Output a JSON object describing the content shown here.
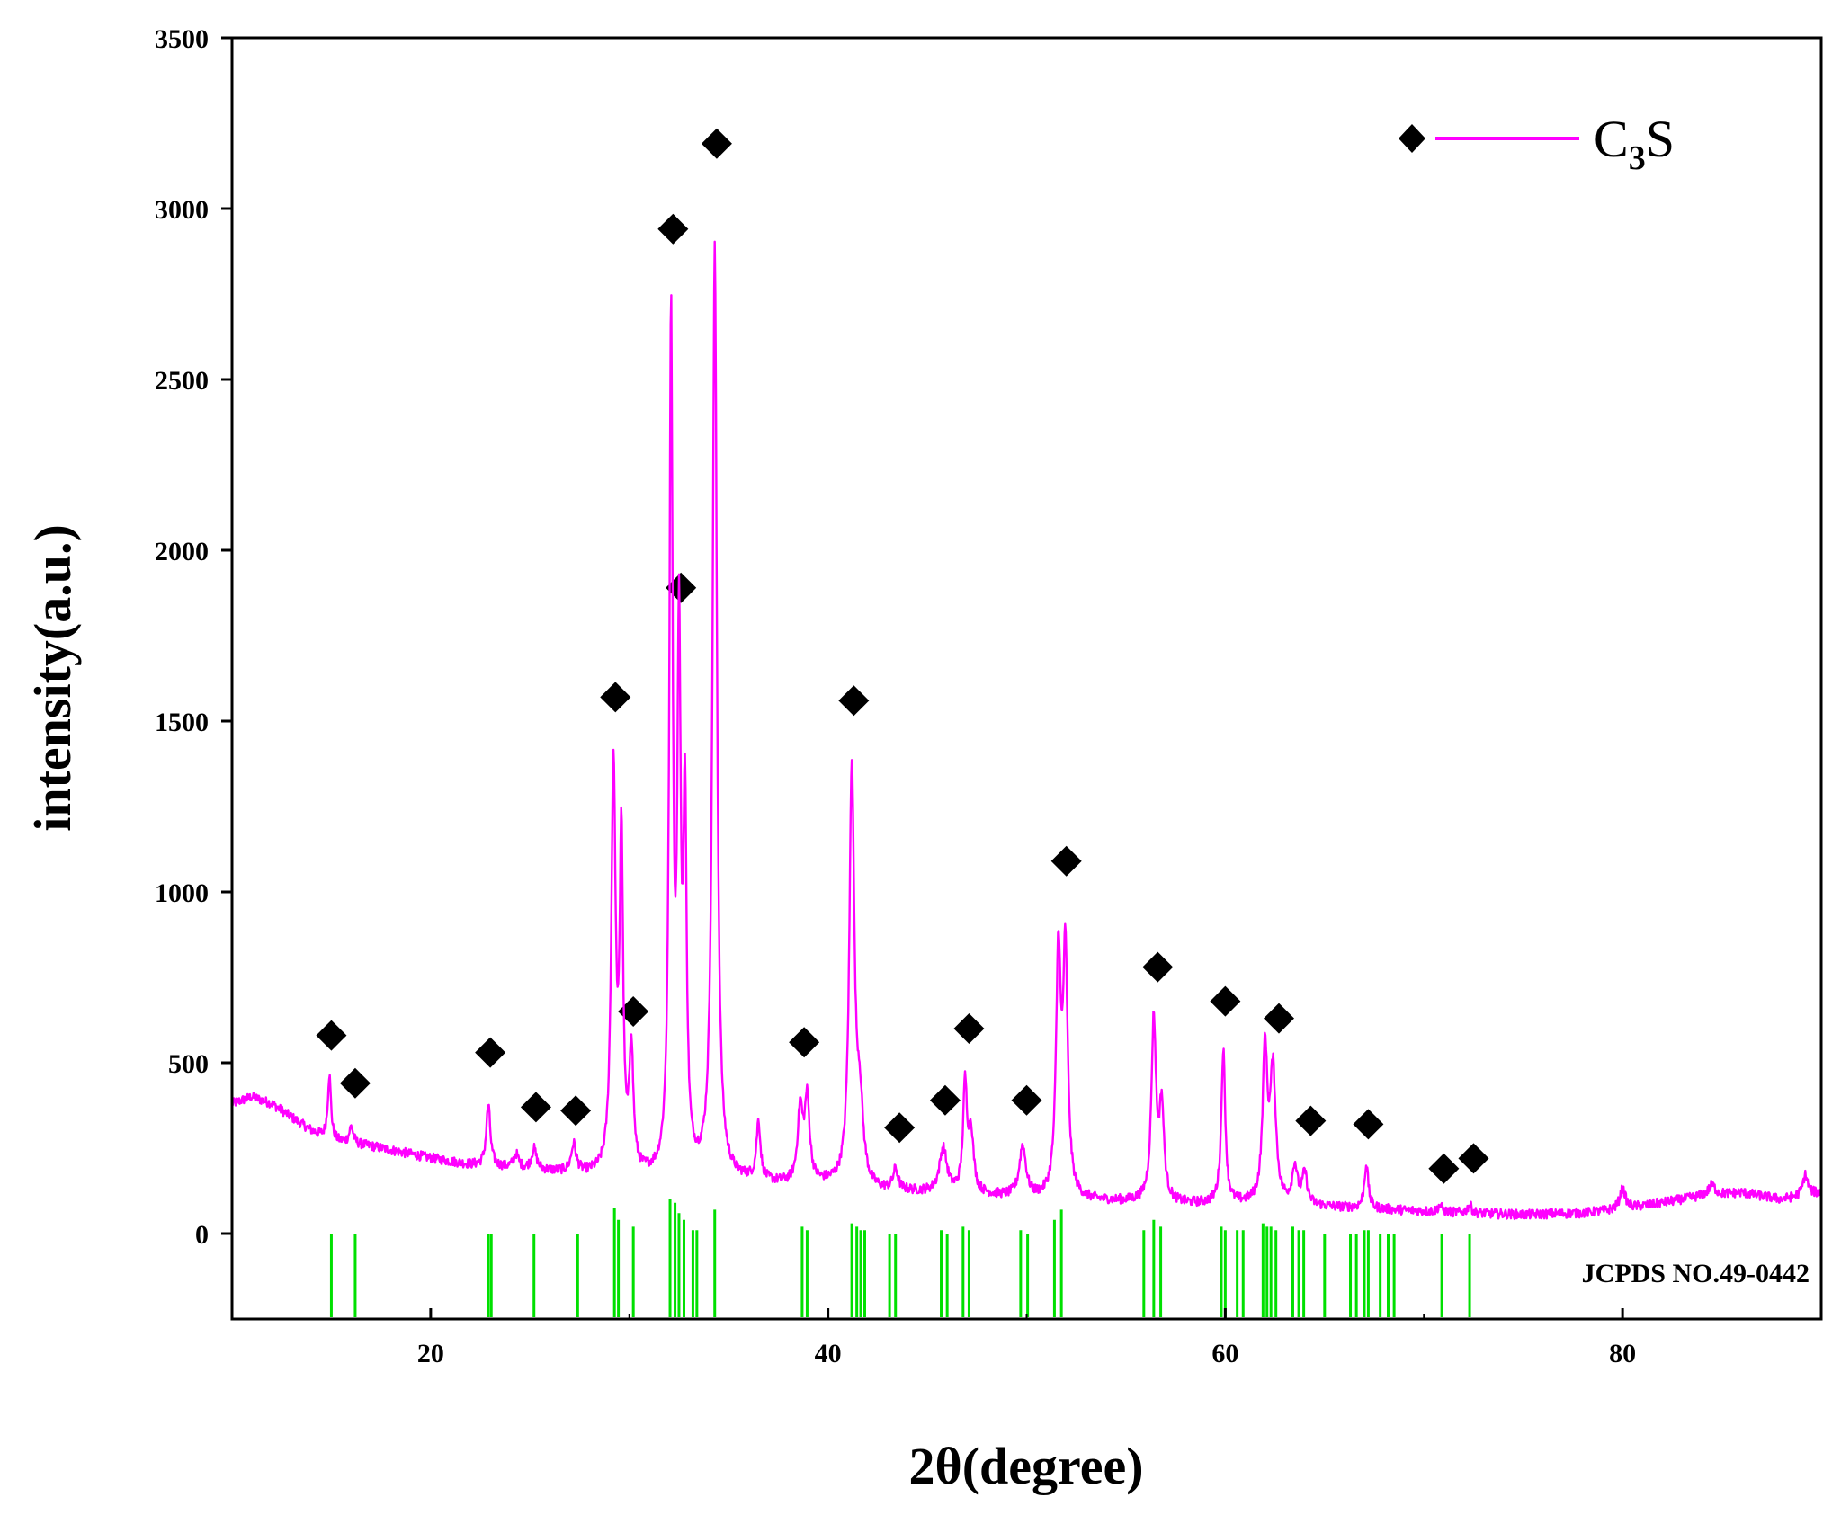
{
  "chart_data": {
    "type": "line",
    "title": "",
    "xlabel": "2θ(degree)",
    "ylabel": "intensity(a.u.)",
    "xlim": [
      10,
      90
    ],
    "ylim": [
      -250,
      3500
    ],
    "x_ticks": [
      20,
      40,
      60,
      80
    ],
    "y_ticks": [
      0,
      500,
      1000,
      1500,
      2000,
      2500,
      3000,
      3500
    ],
    "colors": {
      "pattern": "#ff00ff",
      "reference": "#00e000",
      "marker": "#000000",
      "axis": "#000000"
    },
    "legend": {
      "placement": "top-right",
      "label_main": "C",
      "label_sub": "3",
      "label_tail": "S",
      "marker": "diamond"
    },
    "reference_label": "JCPDS NO.49-0442",
    "baseline": [
      [
        10,
        380
      ],
      [
        11,
        400
      ],
      [
        12,
        380
      ],
      [
        13,
        340
      ],
      [
        14,
        300
      ],
      [
        15,
        270
      ],
      [
        17,
        255
      ],
      [
        20,
        220
      ],
      [
        22,
        200
      ],
      [
        24,
        190
      ],
      [
        26,
        180
      ],
      [
        28,
        170
      ],
      [
        30,
        160
      ],
      [
        33,
        160
      ],
      [
        36,
        150
      ],
      [
        38,
        140
      ],
      [
        40,
        140
      ],
      [
        42,
        120
      ],
      [
        44,
        120
      ],
      [
        46,
        115
      ],
      [
        48,
        110
      ],
      [
        50,
        100
      ],
      [
        53,
        95
      ],
      [
        56,
        90
      ],
      [
        58,
        85
      ],
      [
        60,
        85
      ],
      [
        62,
        85
      ],
      [
        64,
        80
      ],
      [
        66,
        75
      ],
      [
        68,
        70
      ],
      [
        70,
        65
      ],
      [
        72,
        60
      ],
      [
        75,
        55
      ],
      [
        78,
        60
      ],
      [
        80,
        70
      ],
      [
        82,
        90
      ],
      [
        84,
        110
      ],
      [
        86,
        120
      ],
      [
        88,
        100
      ],
      [
        90,
        120
      ]
    ],
    "peaks": [
      {
        "x": 14.9,
        "h": 190,
        "w": 0.1
      },
      {
        "x": 16.0,
        "h": 50,
        "w": 0.12
      },
      {
        "x": 22.9,
        "h": 180,
        "w": 0.12
      },
      {
        "x": 24.3,
        "h": 40,
        "w": 0.15
      },
      {
        "x": 25.2,
        "h": 60,
        "w": 0.15
      },
      {
        "x": 27.2,
        "h": 80,
        "w": 0.15
      },
      {
        "x": 29.2,
        "h": 1190,
        "w": 0.13
      },
      {
        "x": 29.6,
        "h": 950,
        "w": 0.1
      },
      {
        "x": 30.1,
        "h": 360,
        "w": 0.12
      },
      {
        "x": 32.1,
        "h": 2480,
        "w": 0.1
      },
      {
        "x": 32.5,
        "h": 1500,
        "w": 0.1
      },
      {
        "x": 32.8,
        "h": 1020,
        "w": 0.1
      },
      {
        "x": 34.3,
        "h": 2720,
        "w": 0.13
      },
      {
        "x": 36.5,
        "h": 170,
        "w": 0.12
      },
      {
        "x": 38.6,
        "h": 210,
        "w": 0.15
      },
      {
        "x": 38.95,
        "h": 240,
        "w": 0.15
      },
      {
        "x": 41.2,
        "h": 1220,
        "w": 0.15
      },
      {
        "x": 41.6,
        "h": 220,
        "w": 0.2
      },
      {
        "x": 43.4,
        "h": 60,
        "w": 0.15
      },
      {
        "x": 45.8,
        "h": 130,
        "w": 0.22
      },
      {
        "x": 46.9,
        "h": 310,
        "w": 0.12
      },
      {
        "x": 47.2,
        "h": 170,
        "w": 0.15
      },
      {
        "x": 49.8,
        "h": 150,
        "w": 0.2
      },
      {
        "x": 51.6,
        "h": 700,
        "w": 0.14
      },
      {
        "x": 51.95,
        "h": 700,
        "w": 0.14
      },
      {
        "x": 56.4,
        "h": 530,
        "w": 0.14
      },
      {
        "x": 56.8,
        "h": 270,
        "w": 0.14
      },
      {
        "x": 59.9,
        "h": 450,
        "w": 0.12
      },
      {
        "x": 62.0,
        "h": 440,
        "w": 0.14
      },
      {
        "x": 62.4,
        "h": 380,
        "w": 0.17
      },
      {
        "x": 63.5,
        "h": 110,
        "w": 0.15
      },
      {
        "x": 64.0,
        "h": 90,
        "w": 0.15
      },
      {
        "x": 67.1,
        "h": 130,
        "w": 0.12
      },
      {
        "x": 70.8,
        "h": 20,
        "w": 0.12
      },
      {
        "x": 72.3,
        "h": 25,
        "w": 0.12
      },
      {
        "x": 80.0,
        "h": 60,
        "w": 0.18
      },
      {
        "x": 84.5,
        "h": 30,
        "w": 0.2
      },
      {
        "x": 89.2,
        "h": 60,
        "w": 0.15
      }
    ],
    "markers": [
      {
        "x": 15.0,
        "y": 580
      },
      {
        "x": 16.2,
        "y": 440
      },
      {
        "x": 23.0,
        "y": 530
      },
      {
        "x": 25.3,
        "y": 370
      },
      {
        "x": 27.3,
        "y": 360
      },
      {
        "x": 29.3,
        "y": 1570
      },
      {
        "x": 30.2,
        "y": 650
      },
      {
        "x": 32.2,
        "y": 2940
      },
      {
        "x": 32.6,
        "y": 1890
      },
      {
        "x": 34.4,
        "y": 3190
      },
      {
        "x": 38.8,
        "y": 560
      },
      {
        "x": 41.3,
        "y": 1560
      },
      {
        "x": 43.6,
        "y": 310
      },
      {
        "x": 45.9,
        "y": 390
      },
      {
        "x": 47.1,
        "y": 600
      },
      {
        "x": 50.0,
        "y": 390
      },
      {
        "x": 52.0,
        "y": 1090
      },
      {
        "x": 56.6,
        "y": 780
      },
      {
        "x": 60.0,
        "y": 680
      },
      {
        "x": 62.7,
        "y": 630
      },
      {
        "x": 64.3,
        "y": 330
      },
      {
        "x": 67.2,
        "y": 320
      },
      {
        "x": 71.0,
        "y": 190
      },
      {
        "x": 72.5,
        "y": 220
      }
    ],
    "reference_lines": [
      {
        "x": 15.0,
        "top": 0
      },
      {
        "x": 16.2,
        "top": 0
      },
      {
        "x": 22.9,
        "top": 0
      },
      {
        "x": 23.05,
        "top": 0
      },
      {
        "x": 25.2,
        "top": 0
      },
      {
        "x": 27.4,
        "top": 0
      },
      {
        "x": 29.25,
        "top": 75
      },
      {
        "x": 29.45,
        "top": 40
      },
      {
        "x": 30.2,
        "top": 20
      },
      {
        "x": 32.05,
        "top": 100
      },
      {
        "x": 32.3,
        "top": 90
      },
      {
        "x": 32.5,
        "top": 60
      },
      {
        "x": 32.75,
        "top": 40
      },
      {
        "x": 33.2,
        "top": 10
      },
      {
        "x": 33.4,
        "top": 10
      },
      {
        "x": 34.3,
        "top": 70
      },
      {
        "x": 38.7,
        "top": 20
      },
      {
        "x": 38.95,
        "top": 10
      },
      {
        "x": 41.2,
        "top": 30
      },
      {
        "x": 41.45,
        "top": 20
      },
      {
        "x": 41.65,
        "top": 10
      },
      {
        "x": 41.85,
        "top": 10
      },
      {
        "x": 43.1,
        "top": 0
      },
      {
        "x": 43.4,
        "top": 0
      },
      {
        "x": 45.7,
        "top": 10
      },
      {
        "x": 46.0,
        "top": 0
      },
      {
        "x": 46.8,
        "top": 20
      },
      {
        "x": 47.1,
        "top": 10
      },
      {
        "x": 49.7,
        "top": 10
      },
      {
        "x": 50.05,
        "top": 0
      },
      {
        "x": 51.4,
        "top": 40
      },
      {
        "x": 51.75,
        "top": 70
      },
      {
        "x": 55.9,
        "top": 10
      },
      {
        "x": 56.4,
        "top": 40
      },
      {
        "x": 56.75,
        "top": 20
      },
      {
        "x": 59.8,
        "top": 20
      },
      {
        "x": 60.0,
        "top": 10
      },
      {
        "x": 60.6,
        "top": 10
      },
      {
        "x": 60.9,
        "top": 10
      },
      {
        "x": 61.9,
        "top": 30
      },
      {
        "x": 62.1,
        "top": 20
      },
      {
        "x": 62.3,
        "top": 20
      },
      {
        "x": 62.55,
        "top": 10
      },
      {
        "x": 63.4,
        "top": 20
      },
      {
        "x": 63.7,
        "top": 10
      },
      {
        "x": 63.95,
        "top": 10
      },
      {
        "x": 65.0,
        "top": 0
      },
      {
        "x": 66.3,
        "top": 0
      },
      {
        "x": 66.6,
        "top": 0
      },
      {
        "x": 67.0,
        "top": 10
      },
      {
        "x": 67.2,
        "top": 10
      },
      {
        "x": 67.8,
        "top": 0
      },
      {
        "x": 68.2,
        "top": 0
      },
      {
        "x": 68.5,
        "top": 0
      },
      {
        "x": 70.9,
        "top": 0
      },
      {
        "x": 72.3,
        "top": 0
      }
    ]
  }
}
